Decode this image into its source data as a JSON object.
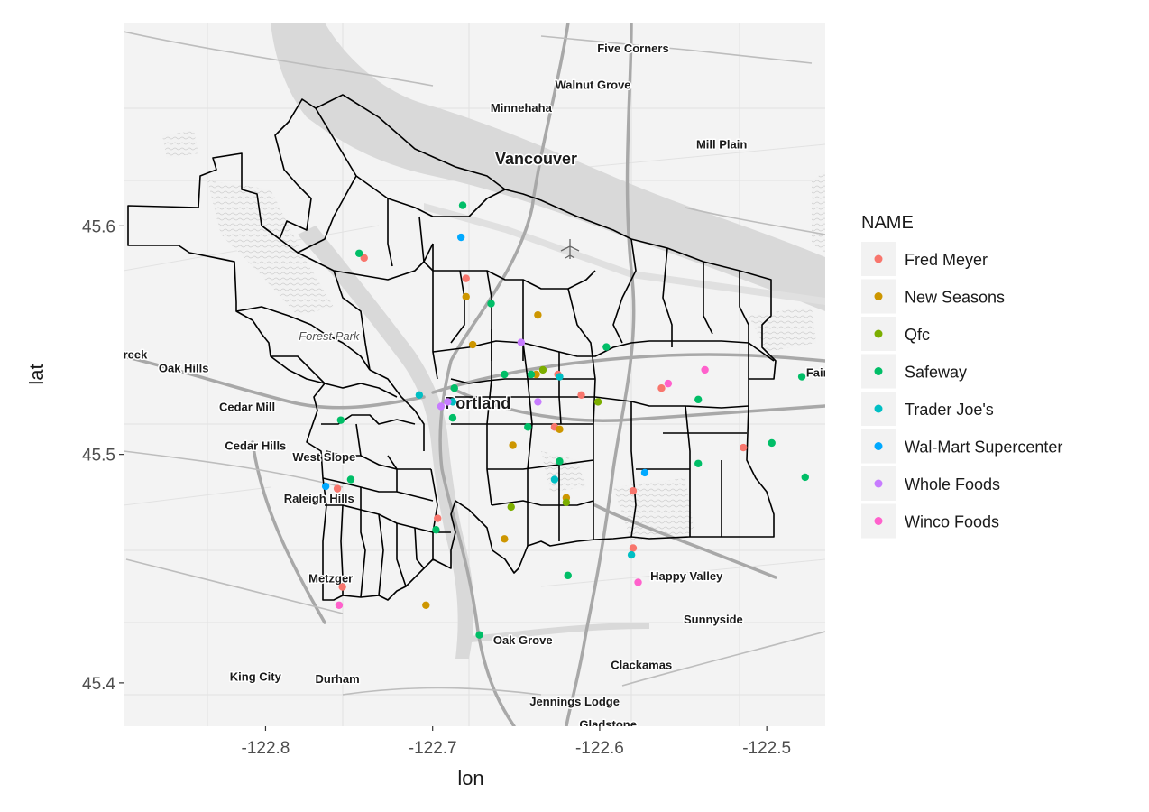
{
  "map": {
    "xlabel": "lon",
    "ylabel": "lat",
    "xlim": [
      -122.885,
      -122.465
    ],
    "ylim": [
      45.381,
      45.689
    ],
    "x_ticks": [
      {
        "value": -122.8,
        "label": "-122.8"
      },
      {
        "value": -122.7,
        "label": "-122.7"
      },
      {
        "value": -122.6,
        "label": "-122.6"
      },
      {
        "value": -122.5,
        "label": "-122.5"
      }
    ],
    "y_ticks": [
      {
        "value": 45.4,
        "label": "45.4"
      },
      {
        "value": 45.5,
        "label": "45.5"
      },
      {
        "value": 45.6,
        "label": "45.6"
      }
    ],
    "background": "basemap road map of the Portland, Oregon area with neighborhood boundary outlines",
    "place_labels": [
      {
        "text": "Five Corners",
        "lon": -122.58,
        "lat": 45.676,
        "size": "small"
      },
      {
        "text": "Walnut Grove",
        "lon": -122.604,
        "lat": 45.66,
        "size": "small"
      },
      {
        "text": "Minnehaha",
        "lon": -122.647,
        "lat": 45.65,
        "size": "small"
      },
      {
        "text": "Vancouver",
        "lon": -122.638,
        "lat": 45.627,
        "size": "big"
      },
      {
        "text": "Mill Plain",
        "lon": -122.527,
        "lat": 45.634,
        "size": "small"
      },
      {
        "text": "Forest Park",
        "lon": -122.762,
        "lat": 45.55,
        "size": "italic"
      },
      {
        "text": "reek",
        "lon": -122.878,
        "lat": 45.542,
        "size": "small"
      },
      {
        "text": "Oak Hills",
        "lon": -122.849,
        "lat": 45.536,
        "size": "small"
      },
      {
        "text": "Cedar Mill",
        "lon": -122.811,
        "lat": 45.519,
        "size": "small"
      },
      {
        "text": "Portland",
        "lon": -122.673,
        "lat": 45.52,
        "size": "big"
      },
      {
        "text": "Fair",
        "lon": -122.47,
        "lat": 45.534,
        "size": "small"
      },
      {
        "text": "Cedar Hills",
        "lon": -122.806,
        "lat": 45.502,
        "size": "small"
      },
      {
        "text": "West Slope",
        "lon": -122.765,
        "lat": 45.497,
        "size": "small"
      },
      {
        "text": "Raleigh Hills",
        "lon": -122.768,
        "lat": 45.479,
        "size": "small"
      },
      {
        "text": "Metzger",
        "lon": -122.761,
        "lat": 45.444,
        "size": "small"
      },
      {
        "text": "Happy Valley",
        "lon": -122.548,
        "lat": 45.445,
        "size": "small"
      },
      {
        "text": "Sunnyside",
        "lon": -122.532,
        "lat": 45.426,
        "size": "small"
      },
      {
        "text": "Oak Grove",
        "lon": -122.646,
        "lat": 45.417,
        "size": "small"
      },
      {
        "text": "Clackamas",
        "lon": -122.575,
        "lat": 45.406,
        "size": "small"
      },
      {
        "text": "King City",
        "lon": -122.806,
        "lat": 45.401,
        "size": "small"
      },
      {
        "text": "Durham",
        "lon": -122.757,
        "lat": 45.4,
        "size": "small"
      },
      {
        "text": "Jennings Lodge",
        "lon": -122.615,
        "lat": 45.39,
        "size": "small"
      },
      {
        "text": "Gladstone",
        "lon": -122.595,
        "lat": 45.38,
        "size": "small"
      }
    ]
  },
  "legend": {
    "title": "NAME",
    "entries": [
      {
        "name": "Fred Meyer",
        "color": "#F8766D"
      },
      {
        "name": "New Seasons",
        "color": "#CD9600"
      },
      {
        "name": "Qfc",
        "color": "#7CAE00"
      },
      {
        "name": "Safeway",
        "color": "#00BE67"
      },
      {
        "name": "Trader Joe's",
        "color": "#00BFC4"
      },
      {
        "name": "Wal-Mart Supercenter",
        "color": "#00A9FF"
      },
      {
        "name": "Whole Foods",
        "color": "#C77CFF"
      },
      {
        "name": "Winco Foods",
        "color": "#FF61CC"
      }
    ]
  },
  "chart_data": {
    "type": "scatter",
    "xlabel": "lon",
    "ylabel": "lat",
    "xlim": [
      -122.885,
      -122.465
    ],
    "ylim": [
      45.381,
      45.689
    ],
    "series": [
      {
        "name": "Fred Meyer",
        "points": [
          [
            -122.741,
            45.586
          ],
          [
            -122.68,
            45.577
          ],
          [
            -122.757,
            45.485
          ],
          [
            -122.697,
            45.472
          ],
          [
            -122.754,
            45.442
          ],
          [
            -122.627,
            45.512
          ],
          [
            -122.611,
            45.526
          ],
          [
            -122.563,
            45.529
          ],
          [
            -122.514,
            45.503
          ],
          [
            -122.58,
            45.484
          ],
          [
            -122.58,
            45.459
          ],
          [
            -122.625,
            45.535
          ]
        ]
      },
      {
        "name": "New Seasons",
        "points": [
          [
            -122.68,
            45.569
          ],
          [
            -122.676,
            45.548
          ],
          [
            -122.637,
            45.561
          ],
          [
            -122.652,
            45.504
          ],
          [
            -122.624,
            45.511
          ],
          [
            -122.638,
            45.535
          ],
          [
            -122.62,
            45.481
          ],
          [
            -122.657,
            45.463
          ],
          [
            -122.704,
            45.434
          ]
        ]
      },
      {
        "name": "Qfc",
        "points": [
          [
            -122.634,
            45.537
          ],
          [
            -122.653,
            45.477
          ],
          [
            -122.62,
            45.479
          ],
          [
            -122.601,
            45.523
          ]
        ]
      },
      {
        "name": "Safeway",
        "points": [
          [
            -122.682,
            45.609
          ],
          [
            -122.744,
            45.588
          ],
          [
            -122.665,
            45.566
          ],
          [
            -122.596,
            45.547
          ],
          [
            -122.657,
            45.535
          ],
          [
            -122.641,
            45.535
          ],
          [
            -122.687,
            45.529
          ],
          [
            -122.755,
            45.515
          ],
          [
            -122.688,
            45.516
          ],
          [
            -122.643,
            45.512
          ],
          [
            -122.541,
            45.524
          ],
          [
            -122.479,
            45.534
          ],
          [
            -122.541,
            45.496
          ],
          [
            -122.624,
            45.497
          ],
          [
            -122.497,
            45.505
          ],
          [
            -122.749,
            45.489
          ],
          [
            -122.698,
            45.467
          ],
          [
            -122.619,
            45.447
          ],
          [
            -122.672,
            45.421
          ],
          [
            -122.477,
            45.49
          ]
        ]
      },
      {
        "name": "Trader Joe's",
        "points": [
          [
            -122.708,
            45.526
          ],
          [
            -122.688,
            45.523
          ],
          [
            -122.627,
            45.489
          ],
          [
            -122.581,
            45.456
          ],
          [
            -122.624,
            45.534
          ]
        ]
      },
      {
        "name": "Wal-Mart Supercenter",
        "points": [
          [
            -122.683,
            45.595
          ],
          [
            -122.764,
            45.486
          ],
          [
            -122.573,
            45.492
          ]
        ]
      },
      {
        "name": "Whole Foods",
        "points": [
          [
            -122.647,
            45.549
          ],
          [
            -122.691,
            45.523
          ],
          [
            -122.637,
            45.523
          ],
          [
            -122.695,
            45.521
          ]
        ]
      },
      {
        "name": "Winco Foods",
        "points": [
          [
            -122.559,
            45.531
          ],
          [
            -122.537,
            45.537
          ],
          [
            -122.577,
            45.444
          ],
          [
            -122.756,
            45.434
          ]
        ]
      }
    ]
  }
}
